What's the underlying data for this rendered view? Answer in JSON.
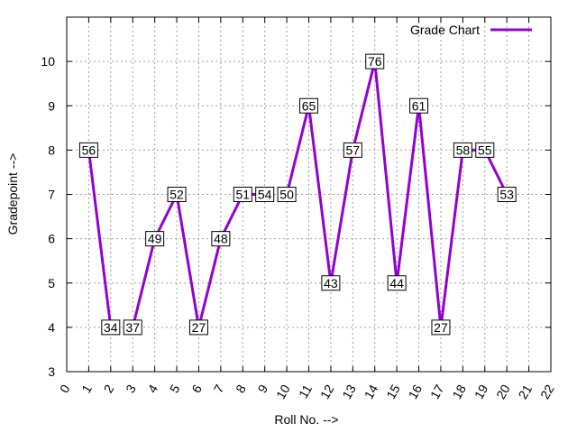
{
  "chart_data": {
    "type": "line",
    "xlabel": "Roll No. -->",
    "ylabel": "Gradepoint -->",
    "xlim": [
      0,
      22
    ],
    "ylim": [
      3,
      11
    ],
    "xticks": [
      "0",
      "1",
      "2",
      "3",
      "4",
      "5",
      "6",
      "7",
      "8",
      "9",
      "10",
      "11",
      "12",
      "13",
      "14",
      "15",
      "16",
      "17",
      "18",
      "19",
      "20",
      "21",
      "22"
    ],
    "yticks": [
      "3",
      "4",
      "5",
      "6",
      "7",
      "8",
      "9",
      "10"
    ],
    "grid": true,
    "legend_position": "top-right",
    "line_color": "#9400d3",
    "series": [
      {
        "name": "Grade Chart",
        "x": [
          1,
          2,
          3,
          4,
          5,
          6,
          7,
          8,
          9,
          10,
          11,
          12,
          13,
          14,
          15,
          16,
          17,
          18,
          19,
          20
        ],
        "y": [
          8,
          4,
          4,
          6,
          7,
          4,
          6,
          7,
          7,
          7,
          9,
          5,
          8,
          10,
          5,
          9,
          4,
          8,
          8,
          7
        ],
        "labels": [
          "56",
          "34",
          "37",
          "49",
          "52",
          "27",
          "48",
          "51",
          "54",
          "50",
          "65",
          "43",
          "57",
          "76",
          "44",
          "61",
          "27",
          "58",
          "55",
          "53"
        ],
        "segments": [
          [
            0,
            1
          ],
          [
            2,
            3
          ],
          [
            3,
            4
          ],
          [
            4,
            5
          ],
          [
            5,
            6
          ],
          [
            6,
            7
          ],
          [
            7,
            8
          ],
          [
            9,
            10
          ],
          [
            10,
            11
          ],
          [
            11,
            12
          ],
          [
            12,
            13
          ],
          [
            13,
            14
          ],
          [
            14,
            15
          ],
          [
            15,
            16
          ],
          [
            16,
            17
          ],
          [
            17,
            18
          ],
          [
            18,
            19
          ]
        ]
      }
    ]
  }
}
